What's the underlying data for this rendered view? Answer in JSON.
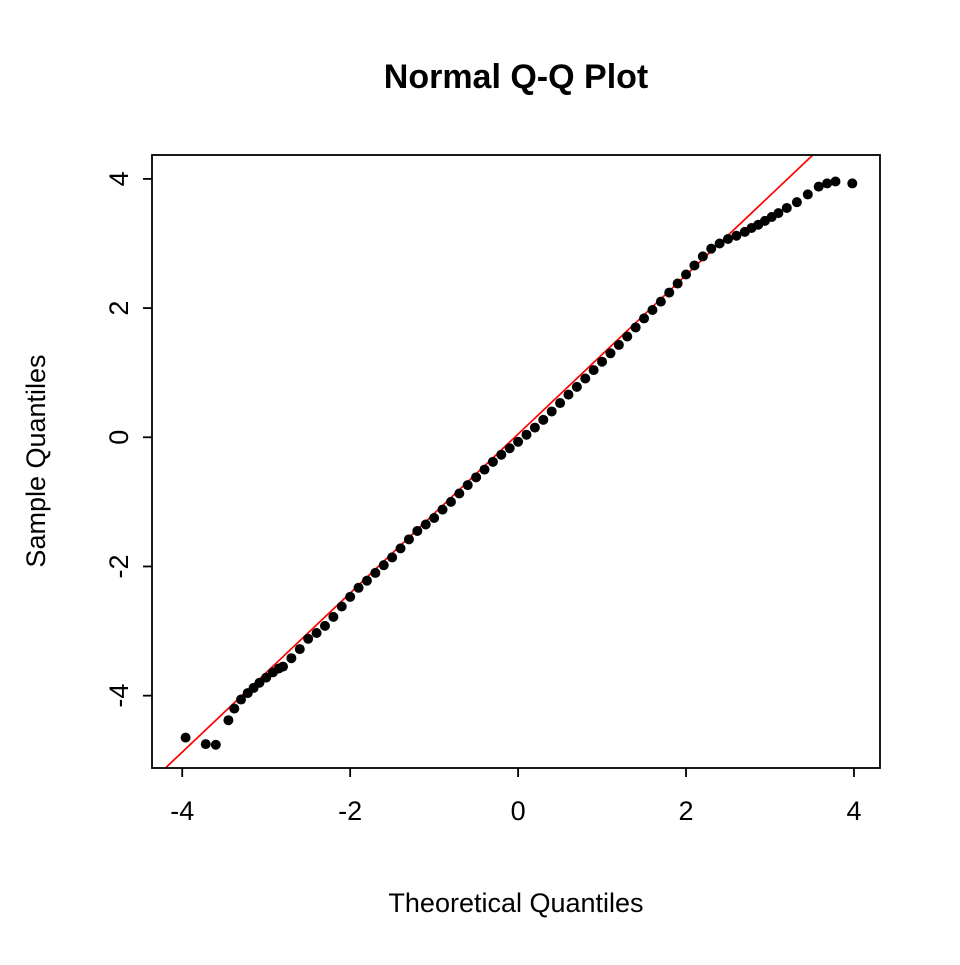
{
  "chart_data": {
    "type": "scatter",
    "title": "Normal Q-Q Plot",
    "xlabel": "Theoretical Quantiles",
    "ylabel": "Sample Quantiles",
    "xlim": [
      -4.36,
      4.31
    ],
    "ylim": [
      -5.12,
      4.37
    ],
    "xticks": [
      -4,
      -2,
      0,
      2,
      4
    ],
    "yticks": [
      -4,
      -2,
      0,
      2,
      4
    ],
    "grid": false,
    "legend": "none",
    "point_color": "#000000",
    "reference_line": {
      "color": "#FF0000",
      "slope": 1.23,
      "intercept": 0.05,
      "x1": -4.2,
      "y1": -5.12,
      "x2": 3.51,
      "y2": 4.37
    },
    "points": [
      [
        -3.96,
        -4.65
      ],
      [
        -3.72,
        -4.75
      ],
      [
        -3.6,
        -4.76
      ],
      [
        -3.45,
        -4.38
      ],
      [
        -3.38,
        -4.2
      ],
      [
        -3.3,
        -4.06
      ],
      [
        -3.22,
        -3.96
      ],
      [
        -3.15,
        -3.88
      ],
      [
        -3.08,
        -3.8
      ],
      [
        -3.0,
        -3.72
      ],
      [
        -2.92,
        -3.64
      ],
      [
        -2.85,
        -3.58
      ],
      [
        -2.8,
        -3.55
      ],
      [
        -2.7,
        -3.42
      ],
      [
        -2.6,
        -3.28
      ],
      [
        -2.5,
        -3.12
      ],
      [
        -2.4,
        -3.03
      ],
      [
        -2.3,
        -2.92
      ],
      [
        -2.2,
        -2.78
      ],
      [
        -2.1,
        -2.62
      ],
      [
        -2.0,
        -2.47
      ],
      [
        -1.9,
        -2.33
      ],
      [
        -1.8,
        -2.22
      ],
      [
        -1.7,
        -2.1
      ],
      [
        -1.6,
        -1.98
      ],
      [
        -1.5,
        -1.86
      ],
      [
        -1.4,
        -1.72
      ],
      [
        -1.3,
        -1.58
      ],
      [
        -1.2,
        -1.45
      ],
      [
        -1.1,
        -1.35
      ],
      [
        -1.0,
        -1.25
      ],
      [
        -0.9,
        -1.12
      ],
      [
        -0.8,
        -1.0
      ],
      [
        -0.7,
        -0.87
      ],
      [
        -0.6,
        -0.74
      ],
      [
        -0.5,
        -0.62
      ],
      [
        -0.4,
        -0.5
      ],
      [
        -0.3,
        -0.38
      ],
      [
        -0.2,
        -0.27
      ],
      [
        -0.1,
        -0.17
      ],
      [
        0.0,
        -0.07
      ],
      [
        0.1,
        0.04
      ],
      [
        0.2,
        0.15
      ],
      [
        0.3,
        0.27
      ],
      [
        0.4,
        0.4
      ],
      [
        0.5,
        0.53
      ],
      [
        0.6,
        0.66
      ],
      [
        0.7,
        0.78
      ],
      [
        0.8,
        0.91
      ],
      [
        0.9,
        1.04
      ],
      [
        1.0,
        1.17
      ],
      [
        1.1,
        1.3
      ],
      [
        1.2,
        1.43
      ],
      [
        1.3,
        1.56
      ],
      [
        1.4,
        1.7
      ],
      [
        1.5,
        1.84
      ],
      [
        1.6,
        1.97
      ],
      [
        1.7,
        2.1
      ],
      [
        1.8,
        2.24
      ],
      [
        1.9,
        2.38
      ],
      [
        2.0,
        2.52
      ],
      [
        2.1,
        2.66
      ],
      [
        2.2,
        2.8
      ],
      [
        2.3,
        2.92
      ],
      [
        2.4,
        3.0
      ],
      [
        2.5,
        3.07
      ],
      [
        2.6,
        3.12
      ],
      [
        2.7,
        3.18
      ],
      [
        2.78,
        3.24
      ],
      [
        2.86,
        3.29
      ],
      [
        2.94,
        3.35
      ],
      [
        3.02,
        3.41
      ],
      [
        3.1,
        3.47
      ],
      [
        3.2,
        3.55
      ],
      [
        3.32,
        3.64
      ],
      [
        3.45,
        3.76
      ],
      [
        3.58,
        3.88
      ],
      [
        3.68,
        3.93
      ],
      [
        3.78,
        3.96
      ],
      [
        3.98,
        3.93
      ]
    ]
  }
}
